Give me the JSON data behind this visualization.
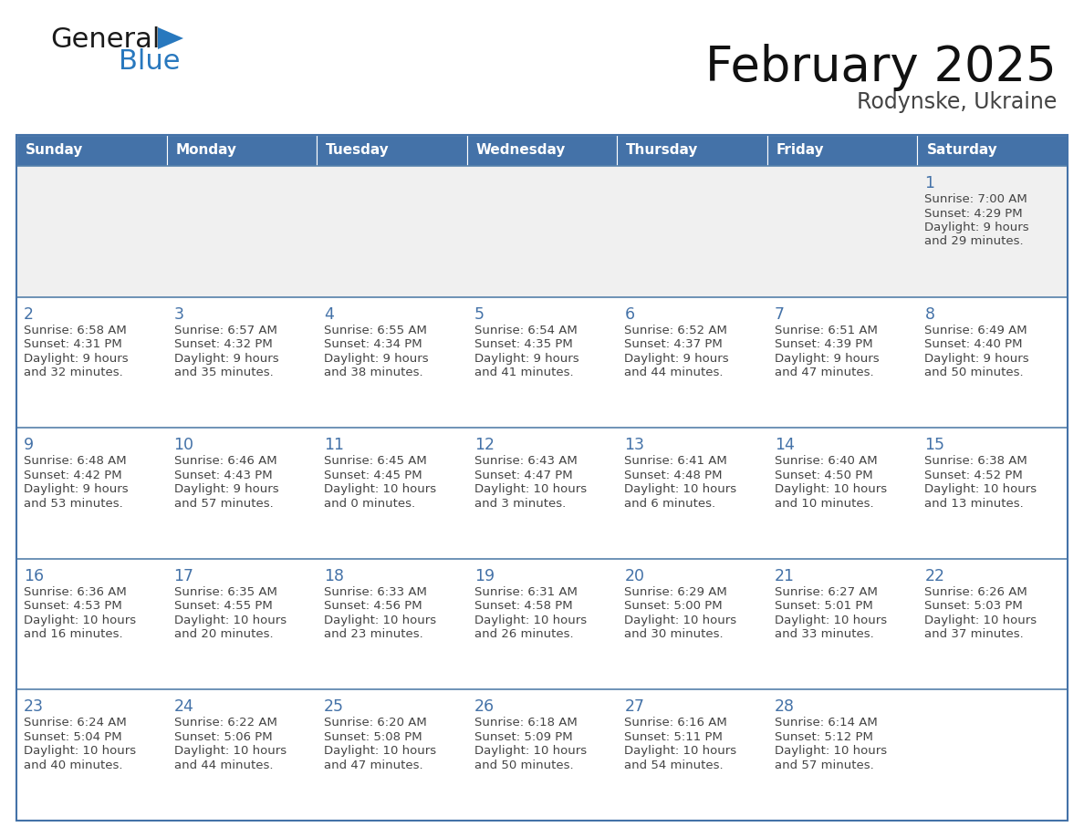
{
  "title": "February 2025",
  "subtitle": "Rodynske, Ukraine",
  "days_of_week": [
    "Sunday",
    "Monday",
    "Tuesday",
    "Wednesday",
    "Thursday",
    "Friday",
    "Saturday"
  ],
  "header_bg": "#4472A8",
  "header_text_color": "#FFFFFF",
  "cell_bg_white": "#FFFFFF",
  "cell_bg_gray": "#F0F0F0",
  "border_color": "#4472A8",
  "row_line_color": "#5580AA",
  "day_number_color": "#4472A8",
  "text_color": "#444444",
  "logo_general_color": "#1a1a1a",
  "logo_blue_color": "#2878BE",
  "calendar_data": [
    [
      null,
      null,
      null,
      null,
      null,
      null,
      {
        "day": 1,
        "sunrise": "7:00 AM",
        "sunset": "4:29 PM",
        "daylight_line1": "9 hours",
        "daylight_line2": "and 29 minutes."
      }
    ],
    [
      {
        "day": 2,
        "sunrise": "6:58 AM",
        "sunset": "4:31 PM",
        "daylight_line1": "9 hours",
        "daylight_line2": "and 32 minutes."
      },
      {
        "day": 3,
        "sunrise": "6:57 AM",
        "sunset": "4:32 PM",
        "daylight_line1": "9 hours",
        "daylight_line2": "and 35 minutes."
      },
      {
        "day": 4,
        "sunrise": "6:55 AM",
        "sunset": "4:34 PM",
        "daylight_line1": "9 hours",
        "daylight_line2": "and 38 minutes."
      },
      {
        "day": 5,
        "sunrise": "6:54 AM",
        "sunset": "4:35 PM",
        "daylight_line1": "9 hours",
        "daylight_line2": "and 41 minutes."
      },
      {
        "day": 6,
        "sunrise": "6:52 AM",
        "sunset": "4:37 PM",
        "daylight_line1": "9 hours",
        "daylight_line2": "and 44 minutes."
      },
      {
        "day": 7,
        "sunrise": "6:51 AM",
        "sunset": "4:39 PM",
        "daylight_line1": "9 hours",
        "daylight_line2": "and 47 minutes."
      },
      {
        "day": 8,
        "sunrise": "6:49 AM",
        "sunset": "4:40 PM",
        "daylight_line1": "9 hours",
        "daylight_line2": "and 50 minutes."
      }
    ],
    [
      {
        "day": 9,
        "sunrise": "6:48 AM",
        "sunset": "4:42 PM",
        "daylight_line1": "9 hours",
        "daylight_line2": "and 53 minutes."
      },
      {
        "day": 10,
        "sunrise": "6:46 AM",
        "sunset": "4:43 PM",
        "daylight_line1": "9 hours",
        "daylight_line2": "and 57 minutes."
      },
      {
        "day": 11,
        "sunrise": "6:45 AM",
        "sunset": "4:45 PM",
        "daylight_line1": "10 hours",
        "daylight_line2": "and 0 minutes."
      },
      {
        "day": 12,
        "sunrise": "6:43 AM",
        "sunset": "4:47 PM",
        "daylight_line1": "10 hours",
        "daylight_line2": "and 3 minutes."
      },
      {
        "day": 13,
        "sunrise": "6:41 AM",
        "sunset": "4:48 PM",
        "daylight_line1": "10 hours",
        "daylight_line2": "and 6 minutes."
      },
      {
        "day": 14,
        "sunrise": "6:40 AM",
        "sunset": "4:50 PM",
        "daylight_line1": "10 hours",
        "daylight_line2": "and 10 minutes."
      },
      {
        "day": 15,
        "sunrise": "6:38 AM",
        "sunset": "4:52 PM",
        "daylight_line1": "10 hours",
        "daylight_line2": "and 13 minutes."
      }
    ],
    [
      {
        "day": 16,
        "sunrise": "6:36 AM",
        "sunset": "4:53 PM",
        "daylight_line1": "10 hours",
        "daylight_line2": "and 16 minutes."
      },
      {
        "day": 17,
        "sunrise": "6:35 AM",
        "sunset": "4:55 PM",
        "daylight_line1": "10 hours",
        "daylight_line2": "and 20 minutes."
      },
      {
        "day": 18,
        "sunrise": "6:33 AM",
        "sunset": "4:56 PM",
        "daylight_line1": "10 hours",
        "daylight_line2": "and 23 minutes."
      },
      {
        "day": 19,
        "sunrise": "6:31 AM",
        "sunset": "4:58 PM",
        "daylight_line1": "10 hours",
        "daylight_line2": "and 26 minutes."
      },
      {
        "day": 20,
        "sunrise": "6:29 AM",
        "sunset": "5:00 PM",
        "daylight_line1": "10 hours",
        "daylight_line2": "and 30 minutes."
      },
      {
        "day": 21,
        "sunrise": "6:27 AM",
        "sunset": "5:01 PM",
        "daylight_line1": "10 hours",
        "daylight_line2": "and 33 minutes."
      },
      {
        "day": 22,
        "sunrise": "6:26 AM",
        "sunset": "5:03 PM",
        "daylight_line1": "10 hours",
        "daylight_line2": "and 37 minutes."
      }
    ],
    [
      {
        "day": 23,
        "sunrise": "6:24 AM",
        "sunset": "5:04 PM",
        "daylight_line1": "10 hours",
        "daylight_line2": "and 40 minutes."
      },
      {
        "day": 24,
        "sunrise": "6:22 AM",
        "sunset": "5:06 PM",
        "daylight_line1": "10 hours",
        "daylight_line2": "and 44 minutes."
      },
      {
        "day": 25,
        "sunrise": "6:20 AM",
        "sunset": "5:08 PM",
        "daylight_line1": "10 hours",
        "daylight_line2": "and 47 minutes."
      },
      {
        "day": 26,
        "sunrise": "6:18 AM",
        "sunset": "5:09 PM",
        "daylight_line1": "10 hours",
        "daylight_line2": "and 50 minutes."
      },
      {
        "day": 27,
        "sunrise": "6:16 AM",
        "sunset": "5:11 PM",
        "daylight_line1": "10 hours",
        "daylight_line2": "and 54 minutes."
      },
      {
        "day": 28,
        "sunrise": "6:14 AM",
        "sunset": "5:12 PM",
        "daylight_line1": "10 hours",
        "daylight_line2": "and 57 minutes."
      },
      null
    ]
  ]
}
